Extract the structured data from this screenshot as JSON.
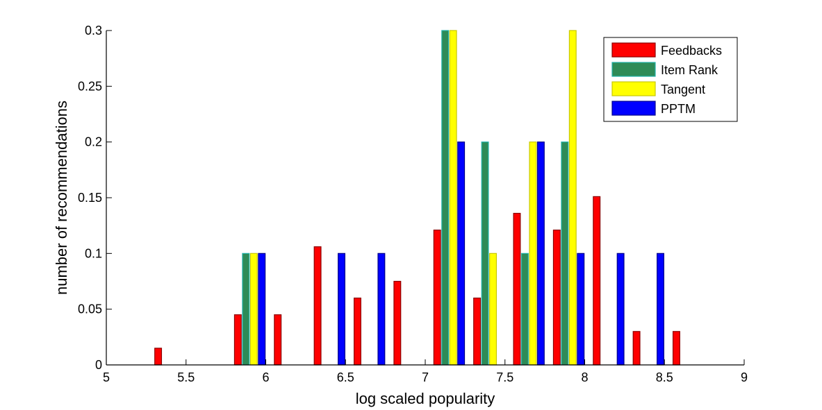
{
  "chart_data": {
    "type": "bar",
    "title": "",
    "xlabel": "log scaled popularity",
    "ylabel": "number of recommendations",
    "xlim": [
      5,
      9
    ],
    "ylim": [
      0,
      0.3
    ],
    "xticks": [
      "5",
      "5.5",
      "6",
      "6.5",
      "7",
      "7.5",
      "8",
      "8.5",
      "9"
    ],
    "yticks": [
      "0",
      "0.05",
      "0.1",
      "0.15",
      "0.2",
      "0.25",
      "0.3"
    ],
    "grid": false,
    "legend_position": "top-right",
    "bin_centers": [
      5.15,
      5.4,
      5.65,
      5.9,
      6.15,
      6.4,
      6.65,
      6.9,
      7.15,
      7.4,
      7.65,
      7.9,
      8.15,
      8.4,
      8.65,
      8.9
    ],
    "series": [
      {
        "name": "Feedbacks",
        "color": "#ff0000",
        "values": [
          0,
          0.015,
          0,
          0.045,
          0.045,
          0.106,
          0.06,
          0.075,
          0.121,
          0.06,
          0.136,
          0.121,
          0.151,
          0.03,
          0.03,
          0
        ]
      },
      {
        "name": "Item Rank",
        "color": "#2e8b57",
        "values": [
          0,
          0,
          0,
          0.1,
          0,
          0,
          0,
          0,
          0.3,
          0.2,
          0.1,
          0.2,
          0,
          0,
          0,
          0
        ]
      },
      {
        "name": "Tangent",
        "color": "#ffff00",
        "values": [
          0,
          0,
          0,
          0.1,
          0,
          0,
          0,
          0,
          0.3,
          0.1,
          0.2,
          0.3,
          0,
          0,
          0,
          0
        ]
      },
      {
        "name": "PPTM",
        "color": "#0000ff",
        "values": [
          0,
          0,
          0,
          0.1,
          0,
          0.1,
          0.1,
          0,
          0.2,
          0,
          0.2,
          0.1,
          0.1,
          0.1,
          0,
          0
        ]
      }
    ]
  }
}
